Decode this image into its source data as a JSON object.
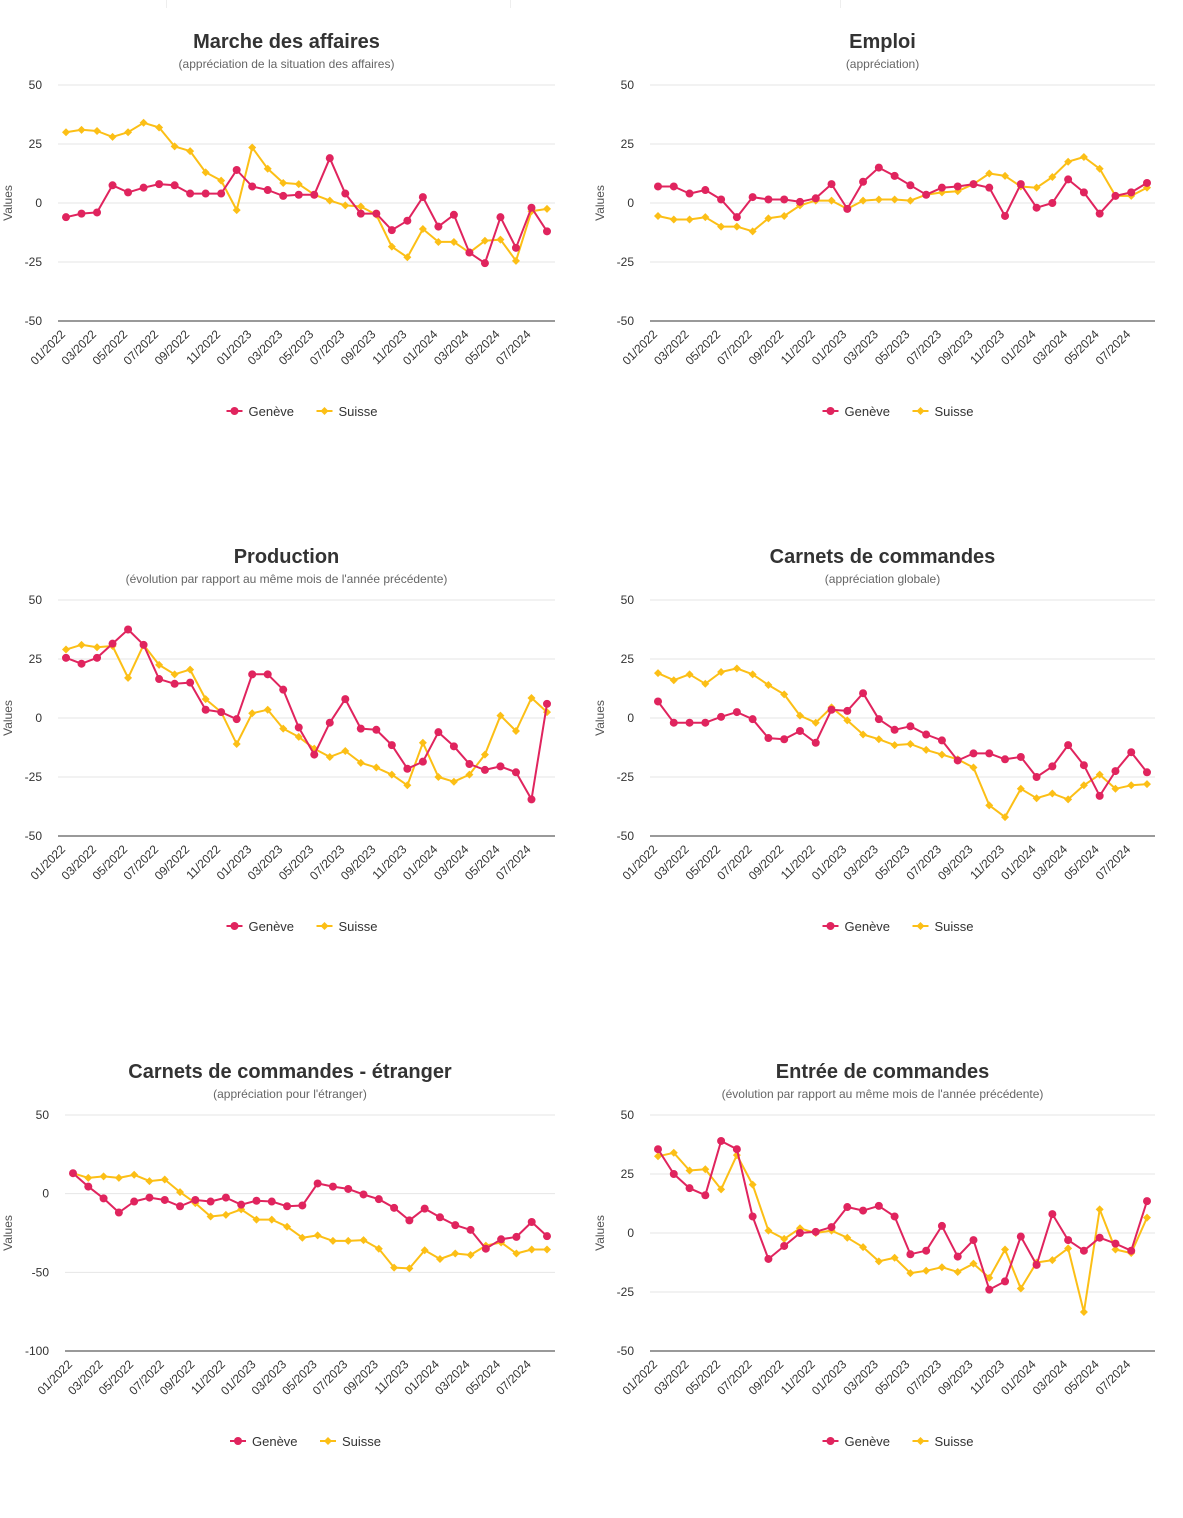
{
  "colors": {
    "geneve": "#e0245e",
    "suisse": "#fcbf16",
    "grid": "#e6e6e6",
    "axis": "#333333"
  },
  "legend": {
    "geneve": "Genève",
    "suisse": "Suisse"
  },
  "x_ticks": [
    "01/2022",
    "03/2022",
    "05/2022",
    "07/2022",
    "09/2022",
    "11/2022",
    "01/2023",
    "03/2023",
    "05/2023",
    "07/2023",
    "09/2023",
    "11/2023",
    "01/2024",
    "03/2024",
    "05/2024",
    "07/2024"
  ],
  "chart_data": [
    {
      "type": "line",
      "title": "Marche des affaires",
      "subtitle": "(appréciation de la situation des affaires)",
      "ylabel": "Values",
      "ylim": [
        -50,
        50
      ],
      "yticks": [
        -50,
        -25,
        0,
        25,
        50
      ],
      "series": [
        {
          "name": "Genève",
          "values": [
            -6,
            -4.5,
            -4,
            7.5,
            4.5,
            6.5,
            8,
            7.5,
            4,
            4,
            4,
            14,
            7,
            5.5,
            3,
            3.5,
            3.5,
            19,
            4,
            -4.5,
            -4.5,
            -11.5,
            -7.5,
            2.5,
            -10,
            -5,
            -21,
            -25.5,
            -6,
            -19,
            -2,
            -12
          ]
        },
        {
          "name": "Suisse",
          "values": [
            30,
            31,
            30.5,
            28,
            30,
            34,
            32,
            24,
            22,
            13,
            9.5,
            -3,
            23.5,
            14.5,
            8.5,
            8,
            3.5,
            1,
            -1,
            -1.5,
            -5,
            -18.5,
            -23,
            -11,
            -16.5,
            -16.5,
            -21,
            -16,
            -15.5,
            -24.5,
            -3.5,
            -2.5
          ]
        }
      ]
    },
    {
      "type": "line",
      "title": "Emploi",
      "subtitle": "(appréciation)",
      "ylabel": "Values",
      "ylim": [
        -50,
        50
      ],
      "yticks": [
        -50,
        -25,
        0,
        25,
        50
      ],
      "series": [
        {
          "name": "Genève",
          "values": [
            7,
            7,
            4,
            5.5,
            1.5,
            -6,
            2.5,
            1.5,
            1.5,
            0.5,
            2,
            8,
            -2.5,
            9,
            15,
            11.5,
            7.5,
            3.5,
            6.5,
            7,
            8,
            6.5,
            -5.5,
            8,
            -2,
            0,
            10,
            4.5,
            -4.5,
            3,
            4.5,
            8.5
          ]
        },
        {
          "name": "Suisse",
          "values": [
            -5.5,
            -7,
            -7,
            -6,
            -10,
            -10,
            -12,
            -6.5,
            -5.5,
            -1,
            1,
            1,
            -2.5,
            1,
            1.5,
            1.5,
            1,
            3.5,
            4.5,
            5,
            8,
            12.5,
            11.5,
            7,
            6.5,
            11,
            17.5,
            19.5,
            14.5,
            3,
            3,
            6.5
          ]
        }
      ]
    },
    {
      "type": "line",
      "title": "Production",
      "subtitle": "(évolution par rapport au même mois de l'année précédente)",
      "ylabel": "Values",
      "ylim": [
        -50,
        50
      ],
      "yticks": [
        -50,
        -25,
        0,
        25,
        50
      ],
      "series": [
        {
          "name": "Genève",
          "values": [
            25.5,
            23,
            25.5,
            31.5,
            37.5,
            31,
            16.5,
            14.5,
            15,
            3.5,
            2.5,
            -0.5,
            18.5,
            18.5,
            12,
            -4,
            -15.5,
            -2,
            8,
            -4.5,
            -5,
            -11.5,
            -21.5,
            -18.5,
            -6,
            -12,
            -19.5,
            -22,
            -20.5,
            -23,
            -34.5,
            6
          ]
        },
        {
          "name": "Suisse",
          "values": [
            29,
            31,
            30,
            30.5,
            17,
            31,
            22.5,
            18.5,
            20.5,
            8,
            2.5,
            -11,
            2,
            3.5,
            -4.5,
            -8,
            -13,
            -16.5,
            -14,
            -19,
            -21,
            -24,
            -28.5,
            -10.5,
            -25,
            -27,
            -24,
            -15.5,
            1,
            -5.5,
            8.5,
            2.5
          ]
        }
      ]
    },
    {
      "type": "line",
      "title": "Carnets de commandes",
      "subtitle": "(appréciation globale)",
      "ylabel": "Values",
      "ylim": [
        -50,
        50
      ],
      "yticks": [
        -50,
        -25,
        0,
        25,
        50
      ],
      "series": [
        {
          "name": "Genève",
          "values": [
            7,
            -2,
            -2,
            -2,
            0.5,
            2.5,
            -0.5,
            -8.5,
            -9,
            -5.5,
            -10.5,
            3.5,
            3,
            10.5,
            -0.5,
            -5,
            -3.5,
            -7,
            -9.5,
            -18,
            -15,
            -15,
            -17.5,
            -16.5,
            -25,
            -20.5,
            -11.5,
            -20,
            -33,
            -22.5,
            -14.5,
            -23
          ]
        },
        {
          "name": "Suisse",
          "values": [
            19,
            16,
            18.5,
            14.5,
            19.5,
            21,
            18.5,
            14,
            10,
            1,
            -2,
            4.5,
            -1,
            -7,
            -9,
            -11.5,
            -11,
            -13.5,
            -15.5,
            -17.5,
            -21,
            -37,
            -42,
            -30,
            -34,
            -32,
            -34.5,
            -28.5,
            -24,
            -30,
            -28.5,
            -28
          ]
        }
      ]
    },
    {
      "type": "line",
      "title": "Carnets de commandes - étranger",
      "subtitle": "(appréciation pour l'étranger)",
      "ylabel": "Values",
      "ylim": [
        -100,
        50
      ],
      "yticks": [
        -100,
        -50,
        0,
        50
      ],
      "series": [
        {
          "name": "Genève",
          "values": [
            13,
            4.5,
            -3,
            -12,
            -5,
            -2.5,
            -4,
            -8,
            -4,
            -5,
            -2.5,
            -7,
            -4.5,
            -5,
            -8,
            -7.5,
            6.5,
            4.5,
            3,
            -0.5,
            -3.5,
            -9,
            -17,
            -9.5,
            -15,
            -20,
            -23,
            -35,
            -29,
            -27.5,
            -18,
            -27
          ]
        },
        {
          "name": "Suisse",
          "values": [
            13,
            10,
            11,
            10,
            12,
            8,
            9,
            1,
            -6,
            -14.5,
            -13.5,
            -10,
            -16.5,
            -16.5,
            -21,
            -28,
            -26.5,
            -30,
            -30,
            -29.5,
            -35,
            -47,
            -47.5,
            -36,
            -41.5,
            -38,
            -39,
            -33,
            -31,
            -38,
            -35.5,
            -35.5
          ]
        }
      ]
    },
    {
      "type": "line",
      "title": "Entrée de commandes",
      "subtitle": "(évolution par rapport au même mois de l'année précédente)",
      "ylabel": "Values",
      "ylim": [
        -50,
        50
      ],
      "yticks": [
        -50,
        -25,
        0,
        25,
        50
      ],
      "series": [
        {
          "name": "Genève",
          "values": [
            35.5,
            25,
            19,
            16,
            39,
            35.5,
            7,
            -11,
            -5.5,
            0,
            0.5,
            2.5,
            11,
            9.5,
            11.5,
            7,
            -9,
            -7.5,
            3,
            -10,
            -3,
            -24,
            -20.5,
            -1.5,
            -13.5,
            8,
            -3,
            -7.5,
            -2,
            -4.5,
            -7.5,
            13.5
          ]
        },
        {
          "name": "Suisse",
          "values": [
            32.5,
            34,
            26.5,
            27,
            18.5,
            33,
            20.5,
            1,
            -2.5,
            2,
            0,
            1,
            -2,
            -6,
            -12,
            -10.5,
            -17,
            -16,
            -14.5,
            -16.5,
            -13,
            -19,
            -7,
            -23.5,
            -12.5,
            -11.5,
            -6.5,
            -33.5,
            10,
            -7,
            -8.5,
            6.5
          ]
        }
      ]
    }
  ]
}
